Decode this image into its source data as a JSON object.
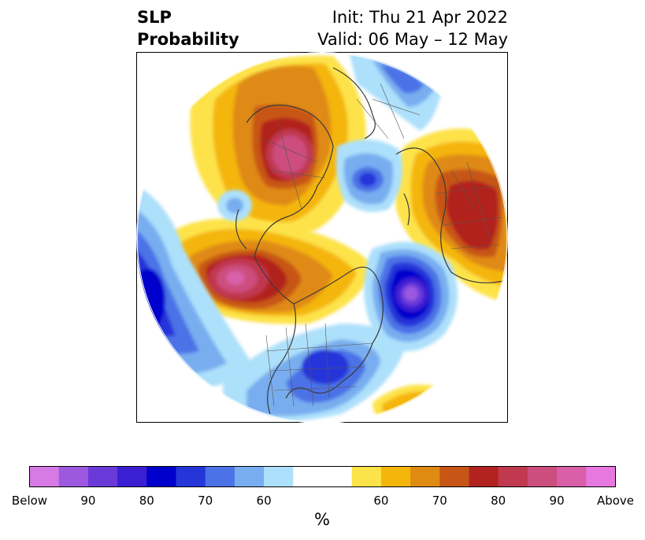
{
  "title": {
    "left_line1": "SLP",
    "left_line2": "Probability",
    "right_line1": "Init: Thu 21 Apr 2022",
    "right_line2": "Valid: 06 May – 12 May"
  },
  "colorbar": {
    "unit": "%",
    "colors": [
      "#d77ae6",
      "#9c59e0",
      "#6a3ad9",
      "#3a1fd3",
      "#0000cc",
      "#2536d9",
      "#4b72e6",
      "#78aef0",
      "#ade0fb",
      "#ffffff",
      "#ffffff",
      "#fde34a",
      "#f4b60b",
      "#df8a12",
      "#c75616",
      "#b2231f",
      "#c0394f",
      "#cc4e7e",
      "#d95fa9",
      "#e678e0"
    ],
    "tick_labels": [
      {
        "text": "Below",
        "index": 0
      },
      {
        "text": "90",
        "index": 2
      },
      {
        "text": "80",
        "index": 4
      },
      {
        "text": "70",
        "index": 6
      },
      {
        "text": "60",
        "index": 8
      },
      {
        "text": "60",
        "index": 12
      },
      {
        "text": "70",
        "index": 14
      },
      {
        "text": "80",
        "index": 16
      },
      {
        "text": "90",
        "index": 18
      },
      {
        "text": "Above",
        "index": 20
      }
    ]
  }
}
